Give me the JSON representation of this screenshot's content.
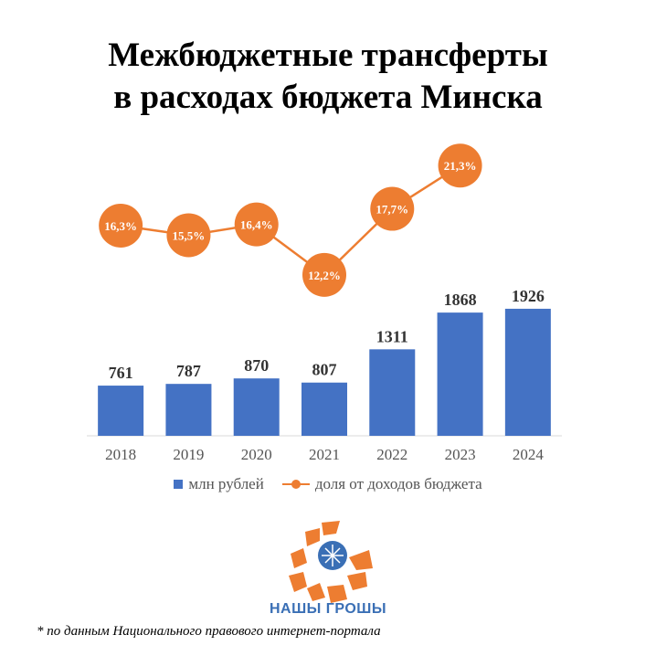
{
  "title_lines": [
    "Межбюджетные трансферты",
    "в расходах бюджета Минска"
  ],
  "legend": {
    "bars": "млн рублей",
    "line": "доля от доходов бюджета"
  },
  "brand": "НАШЫ ГРОШЫ",
  "footnote": "* по данным Национального правового интернет-портала",
  "colors": {
    "bar": "#4472C4",
    "line": "#ED7D31",
    "brand": "#3A6FB5"
  },
  "chart_data": {
    "type": "bar",
    "categories": [
      "2018",
      "2019",
      "2020",
      "2021",
      "2022",
      "2023",
      "2024"
    ],
    "series": [
      {
        "name": "млн рублей",
        "type": "bar",
        "values": [
          761,
          787,
          870,
          807,
          1311,
          1868,
          1926
        ],
        "labels": [
          "761",
          "787",
          "870",
          "807",
          "1311",
          "1868",
          "1926"
        ]
      },
      {
        "name": "доля от доходов бюджета",
        "type": "line",
        "values": [
          16.3,
          15.5,
          16.4,
          12.2,
          17.7,
          21.3,
          null
        ],
        "labels": [
          "16,3%",
          "15,5%",
          "16,4%",
          "12,2%",
          "17,7%",
          "21,3%",
          null
        ]
      }
    ],
    "title": "Межбюджетные трансферты в расходах бюджета Минска",
    "xlabel": "",
    "ylabel": "",
    "ylim": [
      0,
      2000
    ],
    "grid": false,
    "legend_position": "bottom"
  }
}
